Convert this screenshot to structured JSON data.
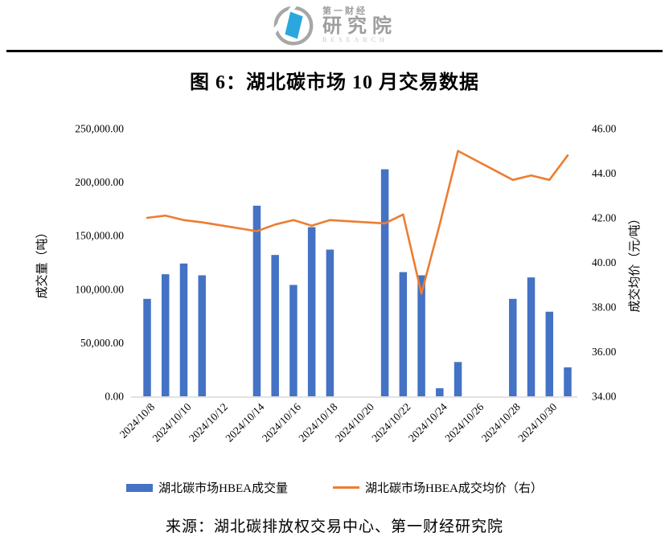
{
  "header": {
    "brand_top": "第一财经",
    "brand_main": "研究院",
    "brand_sub": "RESEARCH"
  },
  "title": "图 6：湖北碳市场 10 月交易数据",
  "source": "来源：湖北碳排放权交易中心、第一财经研究院",
  "colors": {
    "bar": "#4472C4",
    "line": "#ED7D31",
    "axis_line": "#D9D9D9",
    "logo_gray": "#A7A7A7",
    "logo_blue": "#2BA7DE"
  },
  "chart_data": {
    "type": "combo",
    "title": "图 6：湖北碳市场 10 月交易数据",
    "series": [
      {
        "name": "湖北碳市场HBEA成交量",
        "type": "bar",
        "axis": "left",
        "color": "#4472C4"
      },
      {
        "name": "湖北碳市场HBEA成交均价（右）",
        "type": "line",
        "axis": "right",
        "color": "#ED7D31"
      }
    ],
    "left_axis": {
      "title": "成交量（吨）",
      "min": 0,
      "max": 250000,
      "step": 50000,
      "tick_labels": [
        "0.00",
        "50,000.00",
        "100,000.00",
        "150,000.00",
        "200,000.00",
        "250,000.00"
      ]
    },
    "right_axis": {
      "title": "成交均价（元/吨）",
      "min": 34,
      "max": 46,
      "step": 2,
      "tick_labels": [
        "34.00",
        "36.00",
        "38.00",
        "40.00",
        "42.00",
        "44.00",
        "46.00"
      ]
    },
    "x_axis": {
      "start_date": "2024/10/8",
      "end_date": "2024/10/31",
      "total_days": 24,
      "tick_labels": [
        "2024/10/8",
        "2024/10/10",
        "2024/10/12",
        "2024/10/14",
        "2024/10/16",
        "2024/10/18",
        "2024/10/20",
        "2024/10/22",
        "2024/10/24",
        "2024/10/26",
        "2024/10/28",
        "2024/10/30"
      ],
      "tick_day_indices": [
        0,
        2,
        4,
        6,
        8,
        10,
        12,
        14,
        16,
        18,
        20,
        22
      ]
    },
    "points": [
      {
        "date": "2024/10/8",
        "day_index": 0,
        "volume": 91000,
        "avg_price": 42.0
      },
      {
        "date": "2024/10/9",
        "day_index": 1,
        "volume": 114000,
        "avg_price": 42.1
      },
      {
        "date": "2024/10/10",
        "day_index": 2,
        "volume": 124000,
        "avg_price": 41.9
      },
      {
        "date": "2024/10/11",
        "day_index": 3,
        "volume": 113000,
        "avg_price": 41.8
      },
      {
        "date": "2024/10/14",
        "day_index": 6,
        "volume": 178000,
        "avg_price": 41.4
      },
      {
        "date": "2024/10/15",
        "day_index": 7,
        "volume": 132000,
        "avg_price": 41.7
      },
      {
        "date": "2024/10/16",
        "day_index": 8,
        "volume": 104000,
        "avg_price": 41.9
      },
      {
        "date": "2024/10/17",
        "day_index": 9,
        "volume": 158000,
        "avg_price": 41.65
      },
      {
        "date": "2024/10/18",
        "day_index": 10,
        "volume": 137000,
        "avg_price": 41.9
      },
      {
        "date": "2024/10/21",
        "day_index": 13,
        "volume": 212000,
        "avg_price": 41.75
      },
      {
        "date": "2024/10/22",
        "day_index": 14,
        "volume": 116000,
        "avg_price": 42.15
      },
      {
        "date": "2024/10/23",
        "day_index": 15,
        "volume": 113000,
        "avg_price": 38.6
      },
      {
        "date": "2024/10/24",
        "day_index": 16,
        "volume": 7500,
        "avg_price": 41.7
      },
      {
        "date": "2024/10/25",
        "day_index": 17,
        "volume": 32000,
        "avg_price": 45.0
      },
      {
        "date": "2024/10/28",
        "day_index": 20,
        "volume": 91000,
        "avg_price": 43.7
      },
      {
        "date": "2024/10/29",
        "day_index": 21,
        "volume": 111000,
        "avg_price": 43.9
      },
      {
        "date": "2024/10/30",
        "day_index": 22,
        "volume": 79000,
        "avg_price": 43.7
      },
      {
        "date": "2024/10/31",
        "day_index": 23,
        "volume": 27000,
        "avg_price": 44.8
      }
    ]
  }
}
